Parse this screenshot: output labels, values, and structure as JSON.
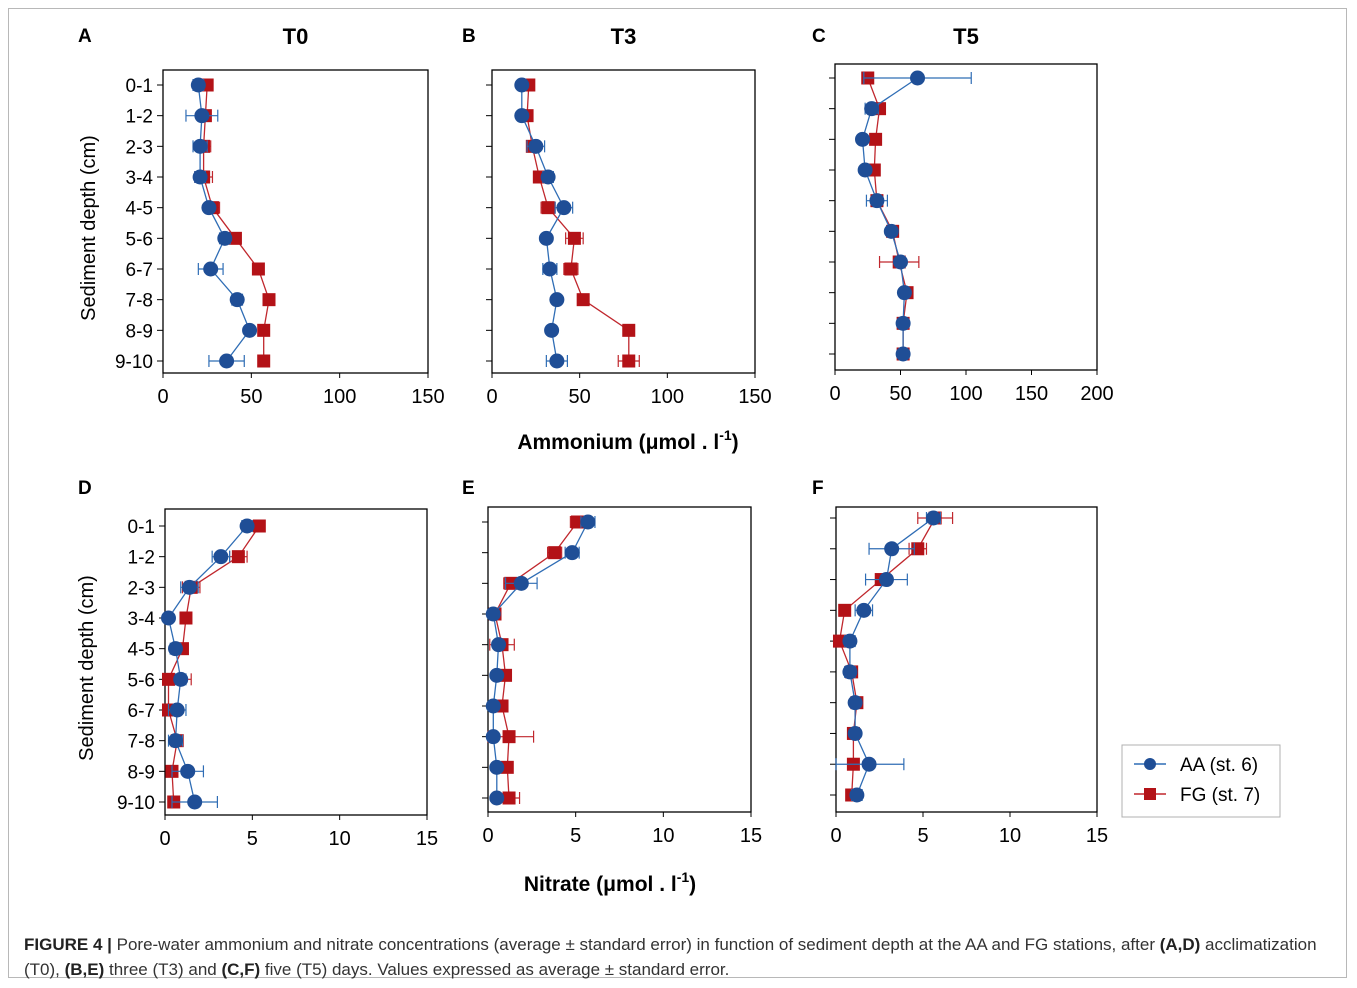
{
  "figure": {
    "axis_title_y": "Sediment depth (cm)",
    "axis_title_x_ammonium": "Ammonium (μmol . l",
    "axis_title_x_ammonium_sup": "-1",
    "axis_title_x_ammonium_end": ")",
    "axis_title_x_nitrate": "Nitrate (μmol . l",
    "axis_title_x_nitrate_sup": "-1",
    "axis_title_x_nitrate_end": ")",
    "depth_labels": [
      "0-1",
      "1-2",
      "2-3",
      "3-4",
      "4-5",
      "5-6",
      "6-7",
      "7-8",
      "8-9",
      "9-10"
    ]
  },
  "legend": {
    "items": [
      {
        "label": "AA (st. 6)",
        "color": "#1f4e96",
        "marker": "circle"
      },
      {
        "label": "FG (st. 7)",
        "color": "#b31217",
        "marker": "square"
      }
    ]
  },
  "colors": {
    "AA": "#1f4e96",
    "FG": "#b31217",
    "AA_line": "#2f6db5",
    "FG_line": "#c0272d"
  },
  "caption": {
    "label": "FIGURE 4 |",
    "t1": " Pore-water ammonium and nitrate concentrations (average ± standard error) in function of sediment depth at the AA and FG stations, after ",
    "b1": "(A,D)",
    "t2": " acclimatization (T0), ",
    "b2": "(B,E)",
    "t3": " three (T3) and ",
    "b3": "(C,F)",
    "t4": " five (T5) days. Values expressed as average ± standard error."
  },
  "chart_data": [
    {
      "panel": "A",
      "title": "T0",
      "type": "scatter",
      "xlim": [
        0,
        150
      ],
      "xticks": [
        0,
        50,
        100,
        150
      ],
      "show_depth_labels": true,
      "series": [
        {
          "name": "AA (st. 6)",
          "x": [
            20,
            22,
            21,
            21,
            26,
            35,
            27,
            42,
            49,
            36
          ],
          "err": [
            3,
            9,
            4,
            3,
            2,
            3,
            7,
            3,
            2,
            10
          ]
        },
        {
          "name": "FG (st. 7)",
          "x": [
            25,
            24,
            23,
            23,
            28,
            41,
            54,
            60,
            57,
            57
          ],
          "err": [
            2,
            2,
            4,
            5,
            4,
            3,
            3,
            2,
            2,
            2
          ]
        }
      ]
    },
    {
      "panel": "B",
      "title": "T3",
      "type": "scatter",
      "xlim": [
        0,
        150
      ],
      "xticks": [
        0,
        50,
        100,
        150
      ],
      "show_depth_labels": false,
      "series": [
        {
          "name": "AA (st. 6)",
          "x": [
            17,
            17,
            25,
            32,
            41,
            31,
            33,
            37,
            34,
            37
          ],
          "err": [
            2,
            2,
            5,
            3,
            5,
            2,
            4,
            2,
            2,
            6
          ]
        },
        {
          "name": "FG (st. 7)",
          "x": [
            21,
            20,
            23,
            27,
            32,
            47,
            45,
            52,
            78,
            78
          ],
          "err": [
            2,
            2,
            3,
            3,
            4,
            5,
            4,
            2,
            2,
            6
          ]
        }
      ]
    },
    {
      "panel": "C",
      "title": "T5",
      "type": "scatter",
      "xlim": [
        0,
        200
      ],
      "xticks": [
        0,
        50,
        100,
        150,
        200
      ],
      "show_depth_labels": false,
      "series": [
        {
          "name": "AA (st. 6)",
          "x": [
            63,
            28,
            21,
            23,
            32,
            43,
            50,
            53,
            52,
            52
          ],
          "err": [
            41,
            5,
            2,
            2,
            8,
            2,
            3,
            2,
            2,
            2
          ]
        },
        {
          "name": "FG (st. 7)",
          "x": [
            25,
            34,
            31,
            30,
            32,
            44,
            49,
            55,
            52,
            52
          ],
          "err": [
            2,
            4,
            2,
            2,
            2,
            2,
            15,
            2,
            2,
            2
          ]
        }
      ]
    },
    {
      "panel": "D",
      "title": "",
      "type": "scatter",
      "xlim": [
        0,
        15
      ],
      "xticks": [
        0,
        5,
        10,
        15
      ],
      "show_depth_labels": true,
      "series": [
        {
          "name": "AA (st. 6)",
          "x": [
            4.7,
            3.2,
            1.4,
            0.2,
            0.6,
            0.9,
            0.7,
            0.6,
            1.3,
            1.7
          ],
          "err": [
            0.3,
            0.5,
            0.5,
            0.1,
            0.3,
            0.3,
            0.5,
            0.4,
            0.9,
            1.3
          ]
        },
        {
          "name": "FG (st. 7)",
          "x": [
            5.4,
            4.2,
            1.5,
            1.2,
            1.0,
            0.2,
            0.2,
            0.7,
            0.4,
            0.5
          ],
          "err": [
            0.3,
            0.5,
            0.5,
            0.1,
            0.2,
            1.3,
            0.2,
            0.3,
            0.2,
            0.3
          ]
        }
      ]
    },
    {
      "panel": "E",
      "title": "",
      "type": "scatter",
      "xlim": [
        0,
        15
      ],
      "xticks": [
        0,
        5,
        10,
        15
      ],
      "show_depth_labels": false,
      "series": [
        {
          "name": "AA (st. 6)",
          "x": [
            5.7,
            4.8,
            1.9,
            0.3,
            0.6,
            0.5,
            0.3,
            0.3,
            0.5,
            0.5
          ],
          "err": [
            0.4,
            0.4,
            0.9,
            0.1,
            0.2,
            0.2,
            0.1,
            0.1,
            0.1,
            0.2
          ]
        },
        {
          "name": "FG (st. 7)",
          "x": [
            5.1,
            3.8,
            1.3,
            0.4,
            0.8,
            1.0,
            0.8,
            1.2,
            1.1,
            1.2
          ],
          "err": [
            0.4,
            0.4,
            0.4,
            0.1,
            0.7,
            0.2,
            0.2,
            1.4,
            0.1,
            0.6
          ]
        }
      ]
    },
    {
      "panel": "F",
      "title": "",
      "type": "scatter",
      "xlim": [
        0,
        15
      ],
      "xticks": [
        0,
        5,
        10,
        15
      ],
      "show_depth_labels": false,
      "series": [
        {
          "name": "AA (st. 6)",
          "x": [
            5.6,
            3.2,
            2.9,
            1.6,
            0.8,
            0.8,
            1.1,
            1.1,
            1.9,
            1.2
          ],
          "err": [
            0.4,
            1.3,
            1.2,
            0.5,
            0.3,
            0.3,
            0.2,
            0.2,
            2.0,
            0.3
          ]
        },
        {
          "name": "FG (st. 7)",
          "x": [
            5.7,
            4.7,
            2.6,
            0.5,
            0.2,
            0.9,
            1.2,
            1.0,
            1.0,
            0.9
          ],
          "err": [
            1.0,
            0.5,
            0.3,
            0.3,
            0.1,
            0.3,
            0.3,
            0.3,
            0.1,
            0.3
          ]
        }
      ]
    }
  ]
}
